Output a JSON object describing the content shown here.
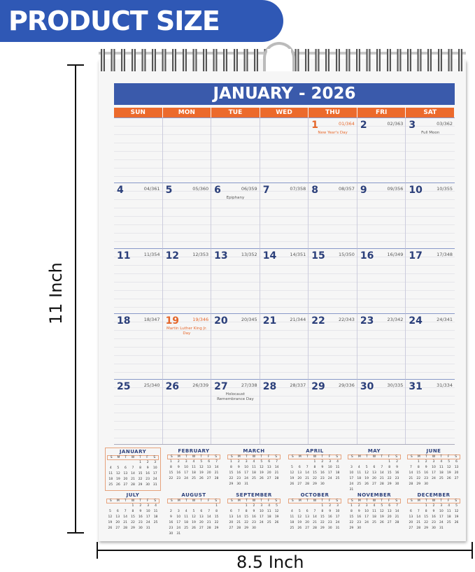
{
  "banner": {
    "label": "PRODUCT SIZE",
    "color": "#2f58b5"
  },
  "dimensions": {
    "height_label": "11 Inch",
    "width_label": "8.5 Inch"
  },
  "calendar": {
    "title": "JANUARY - 2026",
    "colors": {
      "title_bg": "#3a5aab",
      "header_bg": "#ec6a2c",
      "day_number": "#2b3f7a",
      "highlight": "#e5662a"
    },
    "weekdays": [
      "SUN",
      "MON",
      "TUE",
      "WED",
      "THU",
      "FRI",
      "SAT"
    ],
    "cells": [
      {},
      {},
      {},
      {},
      {
        "day": "1",
        "doy": "01/364",
        "note": "New Year's Day",
        "highlight": true
      },
      {
        "day": "2",
        "doy": "02/363"
      },
      {
        "day": "3",
        "doy": "03/362",
        "note": "Full Moon"
      },
      {
        "day": "4",
        "doy": "04/361"
      },
      {
        "day": "5",
        "doy": "05/360"
      },
      {
        "day": "6",
        "doy": "06/359",
        "note": "Epiphany"
      },
      {
        "day": "7",
        "doy": "07/358"
      },
      {
        "day": "8",
        "doy": "08/357"
      },
      {
        "day": "9",
        "doy": "09/356"
      },
      {
        "day": "10",
        "doy": "10/355"
      },
      {
        "day": "11",
        "doy": "11/354"
      },
      {
        "day": "12",
        "doy": "12/353"
      },
      {
        "day": "13",
        "doy": "13/352"
      },
      {
        "day": "14",
        "doy": "14/351"
      },
      {
        "day": "15",
        "doy": "15/350"
      },
      {
        "day": "16",
        "doy": "16/349"
      },
      {
        "day": "17",
        "doy": "17/348"
      },
      {
        "day": "18",
        "doy": "18/347"
      },
      {
        "day": "19",
        "doy": "19/346",
        "note": "Martin Luther King Jr. Day",
        "highlight": true
      },
      {
        "day": "20",
        "doy": "20/345"
      },
      {
        "day": "21",
        "doy": "21/344"
      },
      {
        "day": "22",
        "doy": "22/343"
      },
      {
        "day": "23",
        "doy": "23/342"
      },
      {
        "day": "24",
        "doy": "24/341"
      },
      {
        "day": "25",
        "doy": "25/340"
      },
      {
        "day": "26",
        "doy": "26/339"
      },
      {
        "day": "27",
        "doy": "27/338",
        "note": "Holocaust Remembrance Day"
      },
      {
        "day": "28",
        "doy": "28/337"
      },
      {
        "day": "29",
        "doy": "29/336"
      },
      {
        "day": "30",
        "doy": "30/335"
      },
      {
        "day": "31",
        "doy": "31/334"
      }
    ]
  },
  "mini_calendars": {
    "weekday_initials": [
      "S",
      "M",
      "T",
      "W",
      "T",
      "F",
      "S"
    ],
    "months": [
      {
        "name": "JANUARY",
        "first_weekday": 4,
        "days": 31,
        "highlight": true
      },
      {
        "name": "FEBRUARY",
        "first_weekday": 0,
        "days": 28
      },
      {
        "name": "MARCH",
        "first_weekday": 0,
        "days": 31
      },
      {
        "name": "APRIL",
        "first_weekday": 3,
        "days": 30
      },
      {
        "name": "MAY",
        "first_weekday": 5,
        "days": 31
      },
      {
        "name": "JUNE",
        "first_weekday": 1,
        "days": 30
      },
      {
        "name": "JULY",
        "first_weekday": 3,
        "days": 31
      },
      {
        "name": "AUGUST",
        "first_weekday": 6,
        "days": 31
      },
      {
        "name": "SEPTEMBER",
        "first_weekday": 2,
        "days": 30
      },
      {
        "name": "OCTOBER",
        "first_weekday": 4,
        "days": 31
      },
      {
        "name": "NOVEMBER",
        "first_weekday": 0,
        "days": 30
      },
      {
        "name": "DECEMBER",
        "first_weekday": 2,
        "days": 31
      }
    ]
  }
}
